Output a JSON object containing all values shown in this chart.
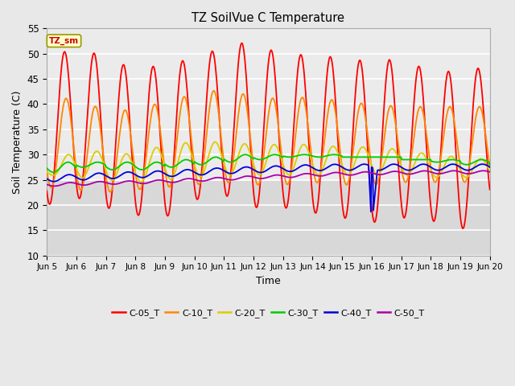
{
  "title": "TZ SoilVue C Temperature",
  "xlabel": "Time",
  "ylabel": "Soil Temperature (C)",
  "ylim": [
    10,
    55
  ],
  "xlim_days": [
    5,
    20
  ],
  "fig_facecolor": "#e8e8e8",
  "plot_bg_color": "#e8e8e8",
  "plot_bg_upper": "#f0f0f0",
  "grid_color": "#ffffff",
  "series": [
    {
      "label": "C-05_T",
      "color": "#ff0000"
    },
    {
      "label": "C-10_T",
      "color": "#ff8800"
    },
    {
      "label": "C-20_T",
      "color": "#ddcc00"
    },
    {
      "label": "C-30_T",
      "color": "#00cc00"
    },
    {
      "label": "C-40_T",
      "color": "#0000dd"
    },
    {
      "label": "C-50_T",
      "color": "#aa00aa"
    }
  ],
  "annotation_text": "TZ_sm",
  "annotation_color": "#cc0000",
  "annotation_bg": "#ffffcc",
  "annotation_border": "#999900",
  "tick_labels": [
    "Jun 5",
    "Jun 6",
    "Jun 7",
    "Jun 8",
    "Jun 9",
    "Jun 10",
    "Jun 11",
    "Jun 12",
    "Jun 13",
    "Jun 14",
    "Jun 15",
    "Jun 16",
    "Jun 17",
    "Jun 18",
    "Jun 19",
    "Jun 20"
  ],
  "yticks": [
    10,
    15,
    20,
    25,
    30,
    35,
    40,
    45,
    50,
    55
  ],
  "figsize": [
    6.4,
    4.8
  ],
  "dpi": 100
}
